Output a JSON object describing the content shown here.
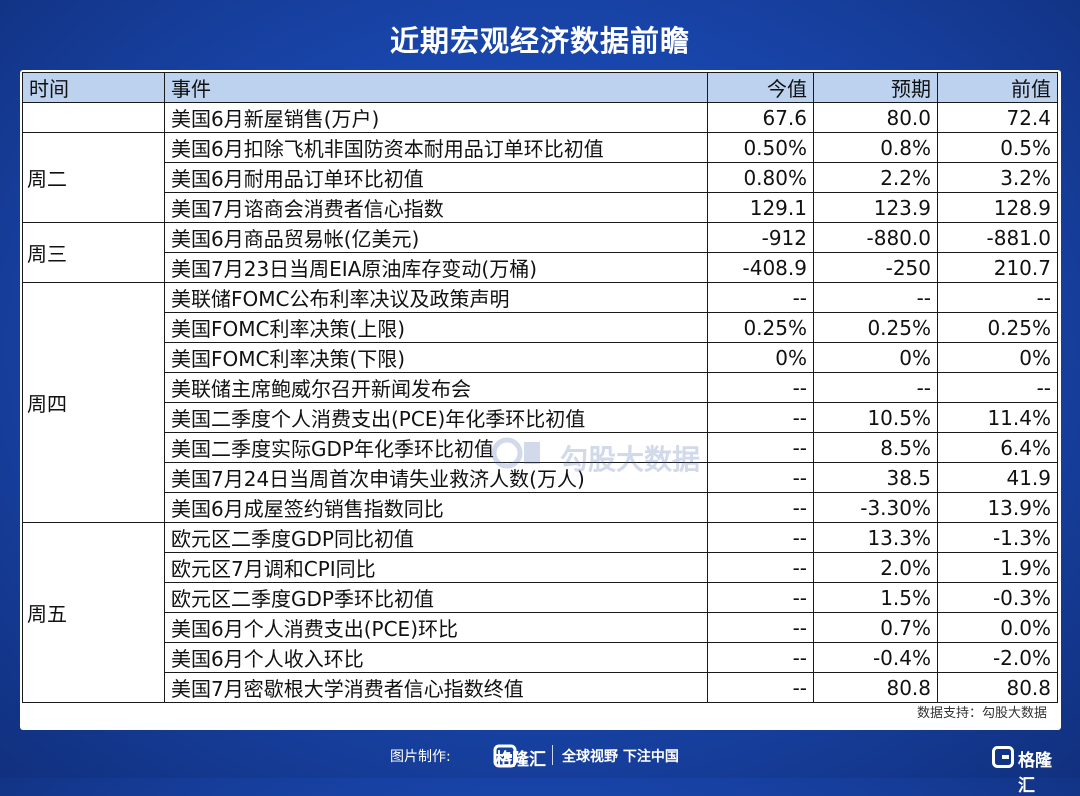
{
  "title": "近期宏观经济数据前瞻",
  "header": {
    "time": "时间",
    "event": "事件",
    "actual": "今值",
    "forecast": "预期",
    "previous": "前值"
  },
  "groups": [
    {
      "day": "",
      "rows": [
        {
          "event": "美国6月新屋销售(万户)",
          "actual": "67.6",
          "forecast": "80.0",
          "previous": "72.4"
        }
      ]
    },
    {
      "day": "周二",
      "rows": [
        {
          "event": "美国6月扣除飞机非国防资本耐用品订单环比初值",
          "actual": "0.50%",
          "forecast": "0.8%",
          "previous": "0.5%"
        },
        {
          "event": "美国6月耐用品订单环比初值",
          "actual": "0.80%",
          "forecast": "2.2%",
          "previous": "3.2%"
        },
        {
          "event": "美国7月谘商会消费者信心指数",
          "actual": "129.1",
          "forecast": "123.9",
          "previous": "128.9"
        }
      ]
    },
    {
      "day": "周三",
      "rows": [
        {
          "event": "美国6月商品贸易帐(亿美元)",
          "actual": "-912",
          "forecast": "-880.0",
          "previous": "-881.0"
        },
        {
          "event": "美国7月23日当周EIA原油库存变动(万桶)",
          "actual": "-408.9",
          "forecast": "-250",
          "previous": "210.7"
        }
      ]
    },
    {
      "day": "周四",
      "rows": [
        {
          "event": "美联储FOMC公布利率决议及政策声明",
          "actual": "--",
          "forecast": "--",
          "previous": "--"
        },
        {
          "event": "美国FOMC利率决策(上限)",
          "actual": "0.25%",
          "forecast": "0.25%",
          "previous": "0.25%"
        },
        {
          "event": "美国FOMC利率决策(下限)",
          "actual": "0%",
          "forecast": "0%",
          "previous": "0%"
        },
        {
          "event": "美联储主席鲍威尔召开新闻发布会",
          "actual": "--",
          "forecast": "--",
          "previous": "--"
        },
        {
          "event": "美国二季度个人消费支出(PCE)年化季环比初值",
          "actual": "--",
          "forecast": "10.5%",
          "previous": "11.4%"
        },
        {
          "event": "美国二季度实际GDP年化季环比初值",
          "actual": "--",
          "forecast": "8.5%",
          "previous": "6.4%"
        },
        {
          "event": "美国7月24日当周首次申请失业救济人数(万人)",
          "actual": "--",
          "forecast": "38.5",
          "previous": "41.9"
        },
        {
          "event": "美国6月成屋签约销售指数同比",
          "actual": "--",
          "forecast": "-3.30%",
          "previous": "13.9%"
        }
      ]
    },
    {
      "day": "周五",
      "rows": [
        {
          "event": "欧元区二季度GDP同比初值",
          "actual": "--",
          "forecast": "13.3%",
          "previous": "-1.3%"
        },
        {
          "event": "欧元区7月调和CPI同比",
          "actual": "--",
          "forecast": "2.0%",
          "previous": "1.9%"
        },
        {
          "event": "欧元区二季度GDP季环比初值",
          "actual": "--",
          "forecast": "1.5%",
          "previous": "-0.3%"
        },
        {
          "event": "美国6月个人消费支出(PCE)环比",
          "actual": "--",
          "forecast": "0.7%",
          "previous": "0.0%"
        },
        {
          "event": "美国6月个人收入环比",
          "actual": "--",
          "forecast": "-0.4%",
          "previous": "-2.0%"
        },
        {
          "event": "美国7月密歇根大学消费者信心指数终值",
          "actual": "--",
          "forecast": "80.8",
          "previous": "80.8"
        }
      ]
    }
  ],
  "data_source": "数据支持：勾股大数据",
  "watermark_text": "勾股大数据",
  "footer": {
    "credit_label": "图片制作:",
    "brand_name": "格隆汇",
    "slogan": "全球视野 下注中国",
    "corner_brand": "格隆汇"
  },
  "colors": {
    "background": "#1844a8",
    "header_row": "#bcd2ee",
    "panel": "#ffffff"
  }
}
